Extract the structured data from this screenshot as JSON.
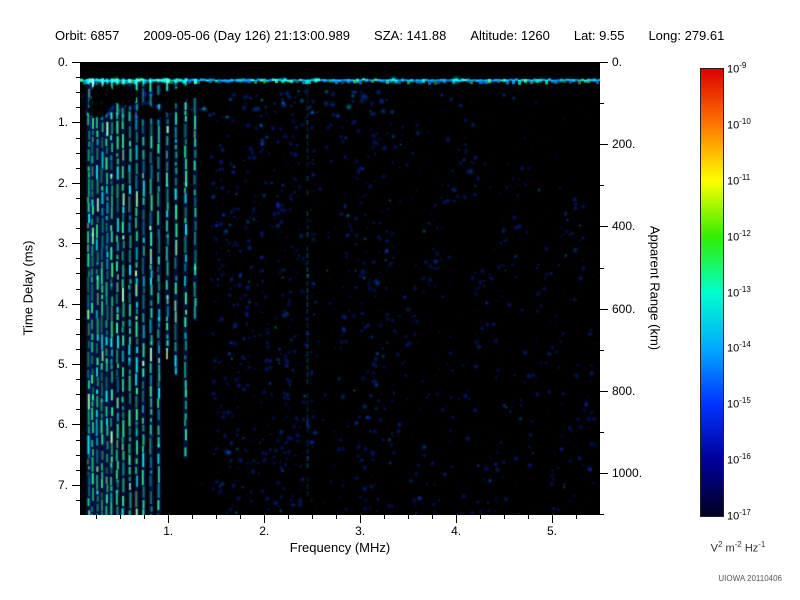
{
  "header": {
    "fields": [
      {
        "label": "Orbit:",
        "value": "6857"
      },
      {
        "label": "",
        "value": "2009-05-06 (Day 126) 21:13:00.989"
      },
      {
        "label": "SZA:",
        "value": "141.88"
      },
      {
        "label": "Altitude:",
        "value": "1260"
      },
      {
        "label": "Lat:",
        "value": "9.55"
      },
      {
        "label": "Long:",
        "value": "279.61"
      }
    ]
  },
  "watermark": "UIOWA 20110406",
  "chart_data": {
    "type": "heatmap",
    "subtype": "radar-sounder-ionogram-spectrogram",
    "background": "#000000",
    "x_axis": {
      "label": "Frequency (MHz)",
      "range": [
        0.08,
        5.5
      ],
      "major_ticks": [
        1,
        2,
        3,
        4,
        5
      ]
    },
    "y_axis_left": {
      "label": "Time Delay (ms)",
      "range": [
        0,
        7.5
      ],
      "major_ticks": [
        0,
        1,
        2,
        3,
        4,
        5,
        6,
        7
      ]
    },
    "y_axis_right": {
      "label": "Apparent Range (km)",
      "range": [
        0,
        1102
      ],
      "major_ticks": [
        0,
        200,
        400,
        600,
        800,
        1000
      ]
    },
    "colorbar": {
      "exponents": [
        -9,
        -10,
        -11,
        -12,
        -13,
        -14,
        -15,
        -16,
        -17
      ],
      "unit_parts": [
        [
          "V",
          "2"
        ],
        [
          "m",
          "-2"
        ],
        [
          "Hz",
          "-1"
        ]
      ],
      "gradient": [
        "#dd0000",
        "#ff7700",
        "#ffff00",
        "#33ee00",
        "#00ffcc",
        "#00aaff",
        "#0033ff",
        "#000099",
        "#000022"
      ]
    },
    "features": [
      {
        "name": "surface-echo-band",
        "time_delay_ms": 0.3,
        "freq_range_mhz": [
          0.08,
          5.5
        ],
        "intensity": "high",
        "colors": [
          "green",
          "cyan",
          "blue"
        ]
      },
      {
        "name": "secondary-echo-scatter",
        "time_delay_range_ms": [
          0.4,
          1.0
        ],
        "freq_range_mhz": [
          0.08,
          3.25
        ],
        "intensity": "medium",
        "color": "blue"
      },
      {
        "name": "electron-plasma-harmonic-stripes",
        "freq_lines_mhz": [
          0.17,
          0.21,
          0.26,
          0.31,
          0.36,
          0.41,
          0.47,
          0.53,
          0.6,
          0.67,
          0.74,
          0.82,
          0.9,
          0.99,
          1.08,
          1.18,
          1.28
        ],
        "time_delay_range_ms": [
          0.27,
          7.5
        ],
        "intensity": "high",
        "color": "green-cyan"
      },
      {
        "name": "narrowband-line",
        "freq_mhz": 2.45,
        "time_delay_range_ms": [
          0.3,
          7.3
        ],
        "intensity": "low",
        "color": "cyan"
      },
      {
        "name": "diffuse-ionospheric-scatter",
        "freq_range_mhz": [
          1.45,
          5.45
        ],
        "time_delay_range_ms": [
          0.6,
          7.5
        ],
        "intensity": "low-medium",
        "color": "blue",
        "note": "dense speckle 1.6-3.3 MHz all delays; sparser blobs 3.3-5.4 MHz mostly at delays > 1-3 ms; dark gap near 2.67 MHz and upper-right corner"
      }
    ]
  }
}
